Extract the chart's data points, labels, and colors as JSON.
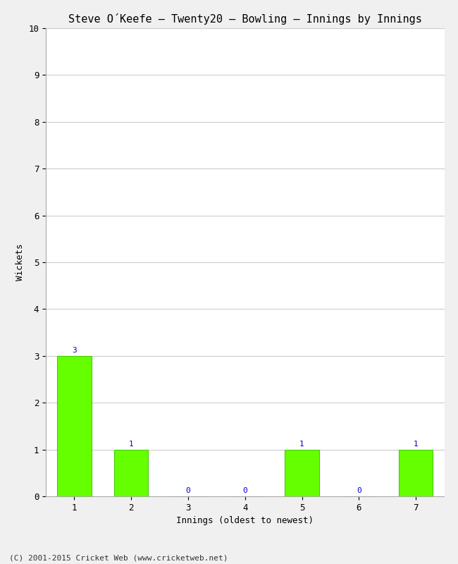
{
  "title": "Steve O´Keefe – Twenty20 – Bowling – Innings by Innings",
  "xlabel": "Innings (oldest to newest)",
  "ylabel": "Wickets",
  "categories": [
    "1",
    "2",
    "3",
    "4",
    "5",
    "6",
    "7"
  ],
  "values": [
    3,
    1,
    0,
    0,
    1,
    0,
    1
  ],
  "bar_color": "#66ff00",
  "bar_edge_color": "#44cc00",
  "ylim": [
    0,
    10
  ],
  "yticks": [
    0,
    1,
    2,
    3,
    4,
    5,
    6,
    7,
    8,
    9,
    10
  ],
  "background_color": "#f0f0f0",
  "plot_background": "#ffffff",
  "title_fontsize": 11,
  "label_fontsize": 9,
  "tick_fontsize": 9,
  "annotation_color": "#0000cc",
  "annotation_fontsize": 8,
  "footer_text": "(C) 2001-2015 Cricket Web (www.cricketweb.net)",
  "footer_fontsize": 8,
  "grid_color": "#cccccc"
}
